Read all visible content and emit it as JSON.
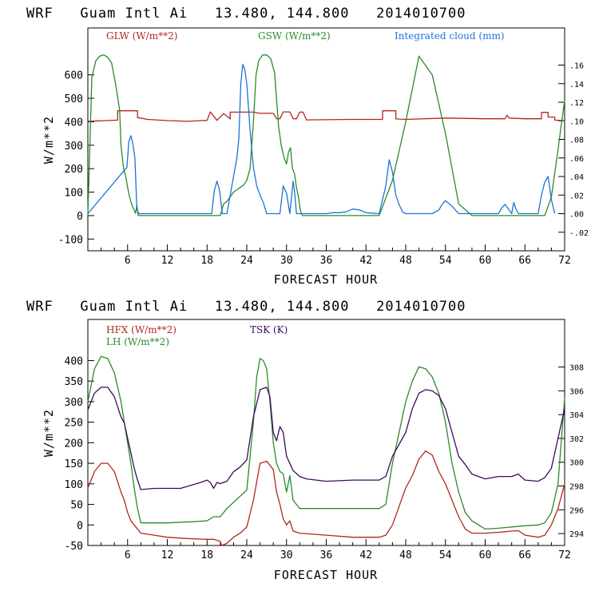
{
  "chart_data": [
    {
      "type": "line",
      "title": "WRF   Guam Intl Ai   13.480, 144.800   2014010700",
      "xlabel": "FORECAST HOUR",
      "ylabel": "W/m**2",
      "xlim": [
        0,
        72
      ],
      "ylim": [
        -150,
        800
      ],
      "xticks": [
        "6",
        "12",
        "18",
        "24",
        "30",
        "36",
        "42",
        "48",
        "54",
        "60",
        "66",
        "72"
      ],
      "yticks": [
        "-100",
        "0",
        "100",
        "200",
        "300",
        "400",
        "500",
        "600"
      ],
      "y2lim": [
        -0.04,
        0.2
      ],
      "y2ticks": [
        "-.02",
        ".00",
        ".02",
        ".04",
        ".06",
        ".08",
        ".10",
        ".12",
        ".14",
        ".16"
      ],
      "legend": [
        {
          "label": "GLW (W/m**2)",
          "color": "#b3261e"
        },
        {
          "label": "GSW (W/m**2)",
          "color": "#2a8a2a"
        },
        {
          "label": "Integrated cloud (mm)",
          "color": "#1e73d6"
        }
      ],
      "series": [
        {
          "name": "GLW",
          "color": "#b3261e",
          "axis": "left",
          "x": [
            0,
            4.5,
            4.5,
            7.5,
            7.5,
            9,
            12,
            15,
            18,
            18.5,
            18.5,
            19.5,
            19.5,
            20.5,
            20.5,
            21.5,
            21.5,
            25,
            26,
            28,
            28.5,
            29,
            29.5,
            30.5,
            31,
            31.5,
            32,
            32.5,
            33,
            40,
            44.5,
            44.5,
            46.5,
            46.5,
            48,
            54,
            60,
            63,
            63.3,
            63.6,
            66,
            68.5,
            68.5,
            69.5,
            69.5,
            70.5,
            70.5,
            72
          ],
          "y": [
            402,
            407,
            447,
            447,
            418,
            410,
            405,
            402,
            406,
            442,
            442,
            406,
            406,
            435,
            435,
            412,
            441,
            441,
            436,
            436,
            413,
            413,
            442,
            442,
            413,
            413,
            441,
            441,
            408,
            410,
            410,
            447,
            447,
            412,
            410,
            416,
            413,
            413,
            428,
            416,
            413,
            413,
            440,
            440,
            420,
            420,
            407,
            405
          ]
        },
        {
          "name": "GSW",
          "color": "#2a8a2a",
          "axis": "left",
          "x": [
            0,
            0.6,
            1.2,
            1.8,
            2.4,
            3,
            3.6,
            4.2,
            4.8,
            5,
            5.2,
            5.4,
            5.7,
            6,
            6.3,
            6.6,
            6.9,
            7.2,
            7.4,
            7.6,
            18,
            20,
            20.5,
            21,
            21.5,
            22,
            22.5,
            23,
            23.5,
            24,
            24.5,
            25,
            25.4,
            25.8,
            26.4,
            27,
            27.6,
            28.2,
            28.8,
            29.2,
            29.6,
            30,
            30.3,
            30.6,
            30.9,
            31.2,
            31.5,
            31.8,
            32.1,
            32.4,
            44,
            46,
            48,
            50,
            52,
            54,
            56,
            58,
            68,
            69,
            70,
            71,
            71.5,
            72
          ],
          "y": [
            0,
            590,
            660,
            680,
            685,
            675,
            650,
            560,
            450,
            300,
            250,
            200,
            170,
            120,
            80,
            50,
            30,
            10,
            45,
            0,
            0,
            0,
            50,
            60,
            80,
            100,
            110,
            120,
            130,
            150,
            200,
            400,
            600,
            660,
            685,
            685,
            670,
            610,
            380,
            300,
            250,
            220,
            270,
            290,
            200,
            180,
            120,
            80,
            20,
            0,
            0,
            150,
            400,
            680,
            600,
            350,
            50,
            0,
            0,
            0,
            80,
            280,
            390,
            490
          ]
        },
        {
          "name": "Integrated cloud",
          "color": "#1e73d6",
          "axis": "right",
          "x": [
            0,
            5.9,
            6.2,
            6.5,
            6.8,
            7.1,
            7.4,
            7.7,
            18.7,
            19.1,
            19.5,
            19.9,
            20.3,
            21,
            21.5,
            22,
            22.5,
            22.8,
            23.1,
            23.4,
            23.7,
            24,
            24.5,
            25,
            25.5,
            26,
            26.5,
            27,
            28,
            29,
            29.5,
            30,
            30.5,
            31,
            31.2,
            31.5,
            32,
            36,
            37,
            38,
            39,
            40,
            41,
            42,
            44,
            45,
            45.5,
            46,
            46.5,
            47,
            47.5,
            48,
            52,
            53,
            53.5,
            54,
            55,
            56,
            62,
            62.5,
            63,
            64,
            64.3,
            64.6,
            65,
            67,
            68,
            68.5,
            69,
            69.5,
            70,
            70.5
          ],
          "y": [
            0,
            0.05,
            0.078,
            0.084,
            0.075,
            0.06,
            0.005,
            0,
            0,
            0.025,
            0.035,
            0.025,
            0,
            0,
            0.02,
            0.04,
            0.06,
            0.08,
            0.14,
            0.161,
            0.155,
            0.14,
            0.09,
            0.05,
            0.03,
            0.02,
            0.012,
            0,
            0,
            0,
            0.03,
            0.022,
            0,
            0.035,
            0.025,
            0,
            0,
            0,
            0.001,
            0.001,
            0.002,
            0.005,
            0.004,
            0.001,
            0,
            0.03,
            0.058,
            0.045,
            0.02,
            0.01,
            0.002,
            0,
            0,
            0.004,
            0.01,
            0.014,
            0.008,
            0,
            0,
            0.006,
            0.01,
            0,
            0.012,
            0.006,
            0,
            0,
            0,
            0.02,
            0.034,
            0.04,
            0.015,
            0
          ]
        }
      ]
    },
    {
      "type": "line",
      "title": "WRF   Guam Intl Ai   13.480, 144.800   2014010700",
      "xlabel": "FORECAST HOUR",
      "ylabel": "W/m**2",
      "xlim": [
        0,
        72
      ],
      "ylim": [
        -50,
        500
      ],
      "xticks": [
        "6",
        "12",
        "18",
        "24",
        "30",
        "36",
        "42",
        "48",
        "54",
        "60",
        "66",
        "72"
      ],
      "yticks": [
        "-50",
        "0",
        "50",
        "100",
        "150",
        "200",
        "250",
        "300",
        "350",
        "400"
      ],
      "y2lim": [
        293,
        312
      ],
      "y2ticks": [
        "294",
        "296",
        "298",
        "300",
        "302",
        "304",
        "306",
        "308"
      ],
      "legend": [
        {
          "label": "HFX (W/m**2)",
          "color": "#b3261e"
        },
        {
          "label": "LH  (W/m**2)",
          "color": "#2a8a2a"
        },
        {
          "label": "TSK (K)",
          "color": "#3d0a5c"
        }
      ],
      "series": [
        {
          "name": "HFX",
          "color": "#b3261e",
          "axis": "left",
          "x": [
            0,
            1,
            2,
            3,
            4,
            5,
            5.5,
            6,
            6.5,
            7,
            7.5,
            8,
            10,
            12,
            15,
            18,
            19,
            20,
            20.2,
            21,
            22,
            23,
            24,
            25,
            26,
            27,
            28,
            28.5,
            29,
            29.5,
            30,
            30.5,
            31,
            32,
            36,
            40,
            44,
            45,
            46,
            48,
            49,
            50,
            51,
            52,
            53,
            54,
            55,
            56,
            57,
            58,
            60,
            62,
            64,
            65,
            66,
            68,
            69,
            70,
            71,
            72
          ],
          "y": [
            90,
            130,
            150,
            150,
            130,
            80,
            60,
            30,
            10,
            0,
            -10,
            -20,
            -25,
            -30,
            -33,
            -35,
            -35,
            -40,
            -50,
            -45,
            -30,
            -20,
            -5,
            60,
            150,
            155,
            135,
            80,
            50,
            15,
            0,
            10,
            -15,
            -20,
            -25,
            -30,
            -30,
            -25,
            0,
            90,
            120,
            160,
            180,
            170,
            130,
            100,
            60,
            20,
            -10,
            -20,
            -20,
            -18,
            -15,
            -14,
            -25,
            -30,
            -25,
            0,
            40,
            100
          ]
        },
        {
          "name": "LH",
          "color": "#2a8a2a",
          "axis": "left",
          "x": [
            0,
            1,
            2,
            3,
            4,
            5,
            5.5,
            6,
            6.5,
            7,
            7.5,
            8,
            12,
            16,
            18,
            19,
            20,
            21,
            22,
            23,
            24,
            25,
            25.5,
            26,
            26.5,
            27,
            27.5,
            28,
            28.5,
            29,
            29.5,
            30,
            30.5,
            31,
            32,
            36,
            40,
            44,
            45,
            46,
            48,
            49,
            50,
            51,
            52,
            53,
            54,
            55,
            56,
            57,
            58,
            60,
            62,
            64,
            66,
            68,
            69,
            70,
            71,
            72
          ],
          "y": [
            300,
            380,
            410,
            405,
            370,
            300,
            250,
            200,
            150,
            90,
            40,
            5,
            5,
            8,
            10,
            20,
            20,
            40,
            55,
            70,
            85,
            250,
            360,
            405,
            400,
            380,
            300,
            200,
            150,
            130,
            125,
            80,
            120,
            60,
            40,
            40,
            40,
            40,
            50,
            150,
            300,
            350,
            385,
            380,
            360,
            320,
            250,
            150,
            80,
            30,
            10,
            -10,
            -8,
            -5,
            -2,
            0,
            5,
            30,
            100,
            310
          ]
        },
        {
          "name": "TSK",
          "color": "#3d0a5c",
          "axis": "right",
          "x": [
            0,
            1,
            2,
            3,
            4,
            5,
            5.5,
            6,
            6.5,
            7,
            7.5,
            8,
            10,
            14,
            17,
            18,
            18.5,
            19,
            19.5,
            20,
            21,
            22,
            23,
            24,
            25,
            26,
            27,
            27.5,
            28,
            28.5,
            29,
            29.5,
            30,
            31,
            32,
            33,
            36,
            40,
            44,
            45,
            46,
            48,
            49,
            50,
            51,
            52,
            53,
            54,
            55,
            56,
            57,
            58,
            59,
            60,
            62,
            64,
            65,
            66,
            68,
            69,
            70,
            71,
            72
          ],
          "y": [
            304.4,
            305.8,
            306.3,
            306.3,
            305.5,
            303.8,
            303.3,
            302,
            300.8,
            299.5,
            298.5,
            297.7,
            297.8,
            297.8,
            298.3,
            298.5,
            298.3,
            297.8,
            298.3,
            298.2,
            298.4,
            299.2,
            299.6,
            300.2,
            303.8,
            306.1,
            306.3,
            305.5,
            302.5,
            301.8,
            303,
            302.5,
            300.5,
            299.3,
            298.8,
            298.6,
            298.4,
            298.5,
            298.5,
            298.8,
            300.5,
            302.5,
            304.5,
            305.8,
            306.1,
            306,
            305.6,
            304.5,
            302.5,
            300.5,
            299.8,
            299,
            298.8,
            298.6,
            298.8,
            298.8,
            299,
            298.5,
            298.4,
            298.7,
            299.5,
            302,
            304.5
          ]
        }
      ]
    }
  ]
}
